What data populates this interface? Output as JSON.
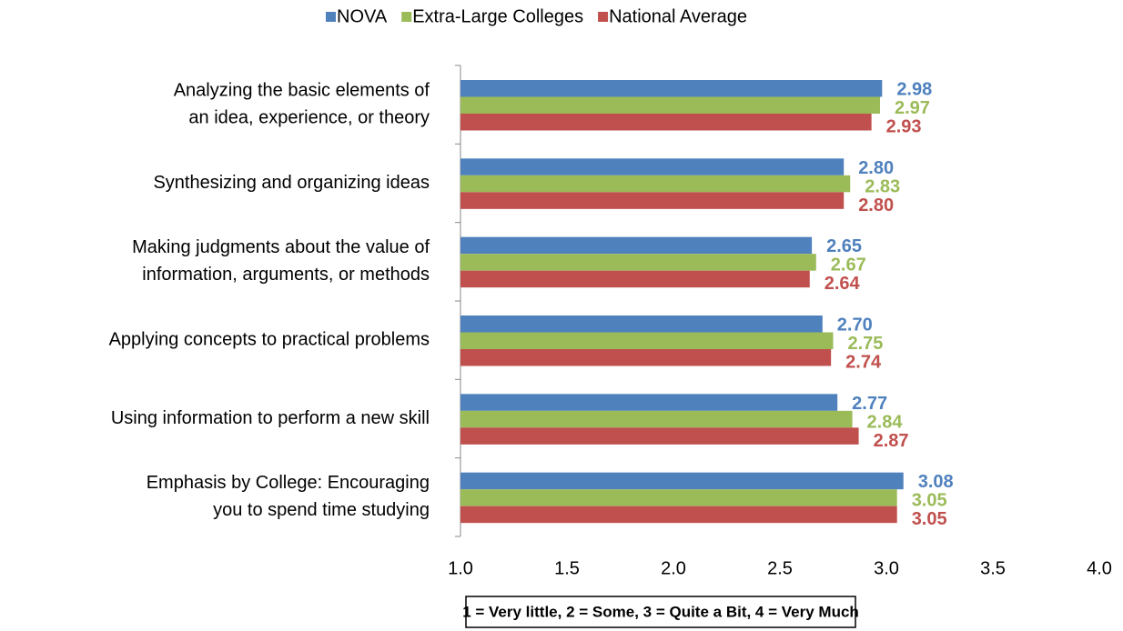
{
  "chart_data": {
    "type": "bar",
    "orientation": "horizontal",
    "categories": [
      [
        "Analyzing the basic elements of",
        "an idea, experience, or theory"
      ],
      [
        "Synthesizing and organizing ideas"
      ],
      [
        "Making judgments about the value of",
        "information, arguments, or methods"
      ],
      [
        "Applying concepts to practical problems"
      ],
      [
        "Using information to perform a new skill"
      ],
      [
        "Emphasis by College: Encouraging",
        "you to spend time studying"
      ]
    ],
    "series": [
      {
        "name": "NOVA",
        "color": "#4f81bd",
        "values": [
          2.98,
          2.8,
          2.65,
          2.7,
          2.77,
          3.08
        ],
        "value_labels": [
          "2.98",
          "2.80",
          "2.65",
          "2.70",
          "2.77",
          "3.08"
        ]
      },
      {
        "name": "Extra-Large Colleges",
        "color": "#9bbb59",
        "values": [
          2.97,
          2.83,
          2.67,
          2.75,
          2.84,
          3.05
        ],
        "value_labels": [
          "2.97",
          "2.83",
          "2.67",
          "2.75",
          "2.84",
          "3.05"
        ]
      },
      {
        "name": "National Average",
        "color": "#c0504d",
        "values": [
          2.93,
          2.8,
          2.64,
          2.74,
          2.87,
          3.05
        ],
        "value_labels": [
          "2.93",
          "2.80",
          "2.64",
          "2.74",
          "2.87",
          "3.05"
        ]
      }
    ],
    "xlim": [
      1,
      4
    ],
    "xticks": [
      {
        "value": 1,
        "label": "1.0"
      },
      {
        "value": 1.5,
        "label": "1.5"
      },
      {
        "value": 2,
        "label": "2.0"
      },
      {
        "value": 2.5,
        "label": "2.5"
      },
      {
        "value": 3,
        "label": "3.0"
      },
      {
        "value": 3.5,
        "label": "3.5"
      },
      {
        "value": 4,
        "label": "4.0"
      }
    ],
    "legend": "top",
    "annotation": "1 = Very little, 2 = Some, 3 = Quite a Bit, 4 = Very Much"
  }
}
